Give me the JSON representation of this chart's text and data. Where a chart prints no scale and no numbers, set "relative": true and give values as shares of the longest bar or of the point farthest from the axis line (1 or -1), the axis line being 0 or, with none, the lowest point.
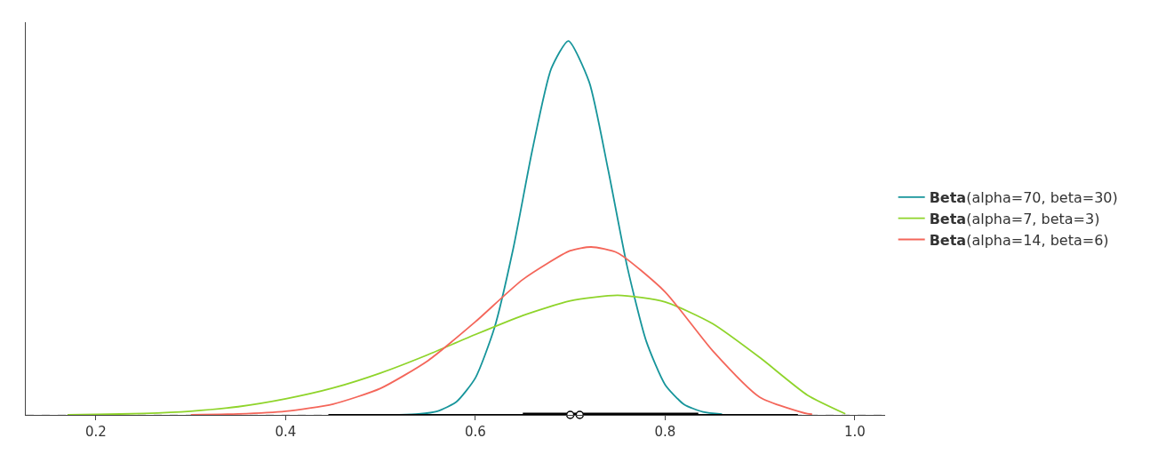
{
  "chart_data": {
    "type": "line",
    "relative": true,
    "grid": false,
    "legend": "right",
    "xlim": [
      0.126,
      1.032
    ],
    "xticks": [
      0.2,
      0.4,
      0.6,
      0.8,
      {
        "value": 1.0,
        "label": "1.0"
      }
    ],
    "ref_lines": [
      {
        "axis": "y",
        "value": 0,
        "color": "#cccccc",
        "line_style": "dashed"
      }
    ],
    "series": [
      {
        "name": "Beta(alpha=70, beta=30)",
        "color": "#17959b",
        "x": [
          0.46,
          0.5,
          0.52,
          0.54,
          0.56,
          0.58,
          0.6,
          0.62,
          0.64,
          0.66,
          0.68,
          0.698,
          0.72,
          0.74,
          0.76,
          0.78,
          0.8,
          0.82,
          0.84,
          0.86
        ],
        "values": [
          0,
          0.0001,
          0.0005,
          0.0025,
          0.01,
          0.035,
          0.099,
          0.232,
          0.446,
          0.708,
          0.926,
          1,
          0.89,
          0.655,
          0.397,
          0.198,
          0.081,
          0.028,
          0.008,
          0.002
        ]
      },
      {
        "name": "Beta(alpha=7, beta=3)",
        "color": "#8fd42b",
        "x": [
          0.17,
          0.2,
          0.25,
          0.3,
          0.35,
          0.4,
          0.45,
          0.5,
          0.55,
          0.6,
          0.65,
          0.7,
          0.75,
          0.8,
          0.85,
          0.9,
          0.95,
          0.99
        ],
        "values": [
          0.0005,
          0.0012,
          0.0039,
          0.01,
          0.022,
          0.043,
          0.072,
          0.112,
          0.161,
          0.215,
          0.266,
          0.305,
          0.32,
          0.302,
          0.244,
          0.153,
          0.053,
          0.003
        ]
      },
      {
        "name": "Beta(alpha=14, beta=6)",
        "color": "#f4665a",
        "x": [
          0.3,
          0.35,
          0.4,
          0.45,
          0.5,
          0.55,
          0.6,
          0.65,
          0.7,
          0.722,
          0.75,
          0.8,
          0.85,
          0.9,
          0.95,
          0.955
        ],
        "values": [
          0.0005,
          0.0026,
          0.0097,
          0.029,
          0.071,
          0.145,
          0.249,
          0.362,
          0.439,
          0.449,
          0.433,
          0.329,
          0.172,
          0.047,
          0.003,
          0.002
        ]
      },
      {
        "color": "#000000",
        "x": [
          0.445,
          0.94
        ],
        "values": [
          0,
          0
        ]
      },
      {
        "color": "#000000",
        "x": [
          0.65,
          0.835
        ],
        "values": [
          0,
          0
        ]
      },
      {
        "type": "scatter",
        "color": "#ffffff",
        "x": [
          0.7,
          0.71
        ],
        "values": [
          0,
          0
        ]
      }
    ]
  }
}
